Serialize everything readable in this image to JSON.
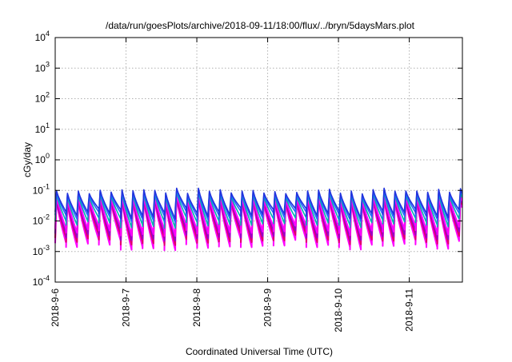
{
  "chart_data": {
    "type": "line",
    "title": "/data/run/goesPlots/archive/2018-09-11/18:00/flux/../bryn/5daysMars.plot",
    "xlabel": "Coordinated Universal Time (UTC)",
    "ylabel": "cGy/day",
    "yscale": "log",
    "ylim": [
      0.0001,
      10000
    ],
    "xlim": [
      "2018-09-06 00:00",
      "2018-09-11 18:00"
    ],
    "grid": true,
    "legend": "none",
    "x_ticks": [
      "2018-9-6",
      "2018-9-7",
      "2018-9-8",
      "2018-9-9",
      "2018-9-10",
      "2018-9-11"
    ],
    "y_ticks": [
      {
        "value": 0.0001,
        "base": "10",
        "exp": "-4"
      },
      {
        "value": 0.001,
        "base": "10",
        "exp": "-3"
      },
      {
        "value": 0.01,
        "base": "10",
        "exp": "-2"
      },
      {
        "value": 0.1,
        "base": "10",
        "exp": "-1"
      },
      {
        "value": 1,
        "base": "10",
        "exp": "0"
      },
      {
        "value": 10,
        "base": "10",
        "exp": "1"
      },
      {
        "value": 100,
        "base": "10",
        "exp": "2"
      },
      {
        "value": 1000,
        "base": "10",
        "exp": "3"
      },
      {
        "value": 10000,
        "base": "10",
        "exp": "4"
      }
    ],
    "pattern": {
      "period_hours": 3.7,
      "description_values": "sawtooth: sharp rise to peak then decay to trough each cycle",
      "series": [
        {
          "color": "#ff00ff",
          "peak": 0.05,
          "trough": 0.0017
        },
        {
          "color": "#e0006a",
          "peak": 0.06,
          "trough": 0.0025
        },
        {
          "color": "#9a00c8",
          "peak": 0.065,
          "trough": 0.0035
        },
        {
          "color": "#ff00ff",
          "peak": 0.07,
          "trough": 0.005
        },
        {
          "color": "#00b0b0",
          "peak": 0.08,
          "trough": 0.009
        },
        {
          "color": "#1e6cff",
          "peak": 0.09,
          "trough": 0.014
        },
        {
          "color": "#2233dd",
          "peak": 0.1,
          "trough": 0.018
        }
      ]
    },
    "colors": {
      "grid": "#b0b0b0",
      "axis": "#000000"
    }
  }
}
